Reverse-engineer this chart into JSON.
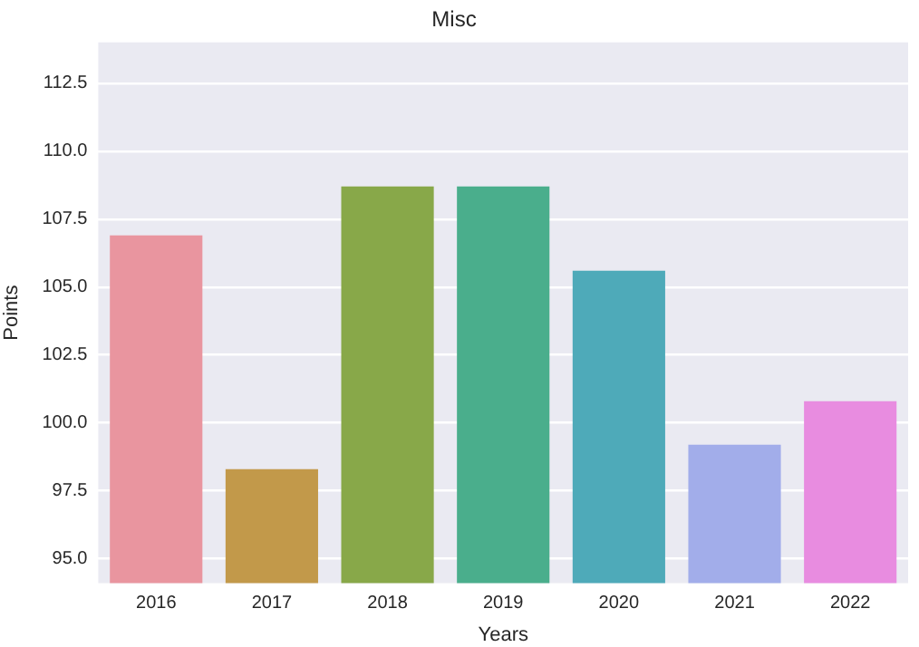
{
  "chart_data": {
    "type": "bar",
    "title": "Misc",
    "xlabel": "Years",
    "ylabel": "Points",
    "categories": [
      "2016",
      "2017",
      "2018",
      "2019",
      "2020",
      "2021",
      "2022"
    ],
    "values": [
      106.9,
      98.3,
      108.7,
      108.7,
      105.6,
      99.2,
      100.8
    ],
    "colors": [
      "#e9959f",
      "#c2994a",
      "#88a849",
      "#4aae8c",
      "#4eaab9",
      "#a2adea",
      "#e88ce0"
    ],
    "ylim": [
      94.1,
      114
    ],
    "yticks": [
      {
        "value": 95,
        "label": "95.0"
      },
      97.5,
      {
        "value": 100,
        "label": "100.0"
      },
      102.5,
      {
        "value": 105,
        "label": "105.0"
      },
      107.5,
      {
        "value": 110,
        "label": "110.0"
      },
      112.5
    ],
    "grid": "y",
    "legend": false
  }
}
